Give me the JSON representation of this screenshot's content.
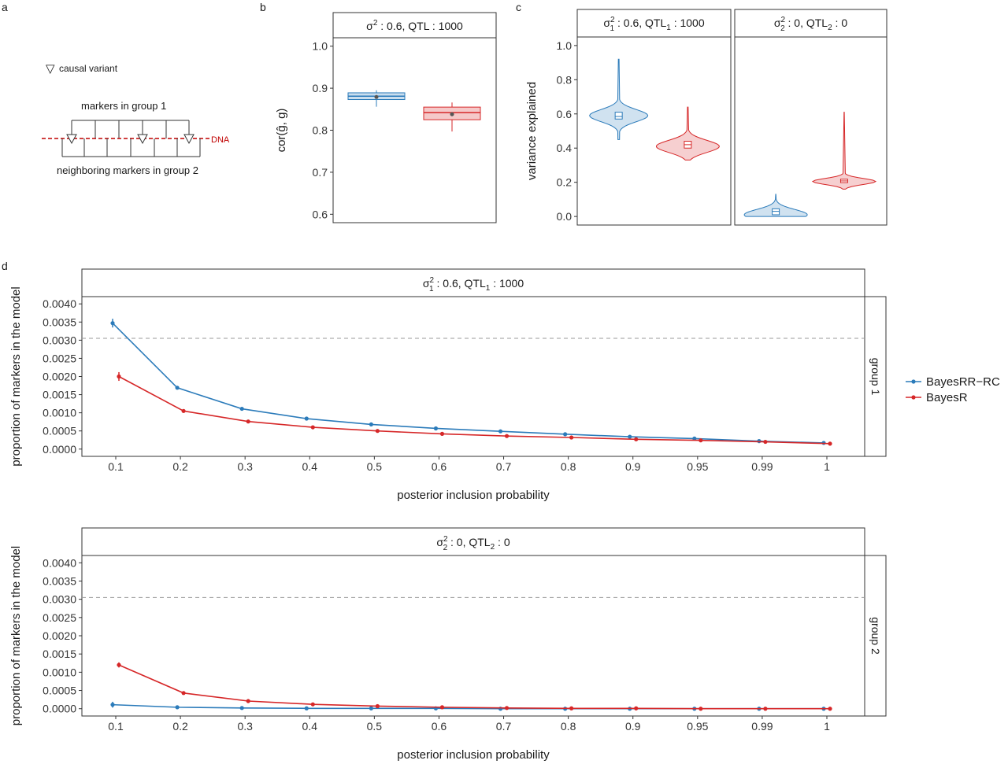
{
  "colors": {
    "bayesrr_rc": "#2b7bba",
    "bayesr": "#d62728",
    "dna": "#c00000",
    "dashed": "#999999"
  },
  "panel_labels": [
    "a",
    "b",
    "c",
    "d"
  ],
  "panel_a": {
    "legend_glyph": "▽",
    "legend_label": "causal variant",
    "group1_label": "markers in group 1",
    "group2_label": "neighboring markers in group 2",
    "dna_label": "DNA"
  },
  "chart_data": [
    {
      "id": "b",
      "type": "box",
      "strip": {
        "base": "σ",
        "sup": "2",
        "rest": " : 0.6, QTL : 1000"
      },
      "ylabel": "cor(ĝ, g)",
      "ylim": [
        0.58,
        1.02
      ],
      "yticks": [
        "0.6",
        "0.7",
        "0.8",
        "0.9",
        "1.0"
      ],
      "boxes": [
        {
          "method": "BayesRR-RC",
          "whisker_low": 0.856,
          "q1": 0.873,
          "median": 0.881,
          "q3": 0.889,
          "whisker_high": 0.895,
          "mean": 0.879
        },
        {
          "method": "BayesR",
          "whisker_low": 0.797,
          "q1": 0.825,
          "median": 0.842,
          "q3": 0.855,
          "whisker_high": 0.866,
          "mean": 0.838
        }
      ]
    },
    {
      "id": "c",
      "type": "violin",
      "ylabel": "variance explained",
      "ylim": [
        -0.05,
        1.05
      ],
      "yticks": [
        "0.0",
        "0.2",
        "0.4",
        "0.6",
        "0.8",
        "1.0"
      ],
      "facets": [
        {
          "strip": {
            "base": "σ",
            "sup": "2",
            "sub": "1",
            "rest": " : 0.6, QTL",
            "sub2": "1",
            "rest2": " : 1000"
          },
          "violins": [
            {
              "method": "BayesRR-RC",
              "min": 0.45,
              "max": 0.92,
              "center": 0.59,
              "q1": 0.57,
              "median": 0.585,
              "q3": 0.61
            },
            {
              "method": "BayesR",
              "min": 0.33,
              "max": 0.64,
              "center": 0.41,
              "q1": 0.4,
              "median": 0.42,
              "q3": 0.44
            }
          ]
        },
        {
          "strip": {
            "base": "σ",
            "sup": "2",
            "sub": "2",
            "rest": " : 0, QTL",
            "sub2": "2",
            "rest2": " : 0"
          },
          "violins": [
            {
              "method": "BayesRR-RC",
              "min": 0.0,
              "max": 0.13,
              "center": 0.01,
              "q1": 0.01,
              "median": 0.03,
              "q3": 0.045
            },
            {
              "method": "BayesR",
              "min": 0.16,
              "max": 0.61,
              "center": 0.205,
              "q1": 0.198,
              "median": 0.208,
              "q3": 0.218
            }
          ]
        }
      ]
    },
    {
      "id": "d",
      "type": "line",
      "xlabel": "posterior inclusion probability",
      "ylabel": "proportion of markers in the model",
      "categories": [
        "0.1",
        "0.2",
        "0.3",
        "0.4",
        "0.5",
        "0.6",
        "0.7",
        "0.8",
        "0.9",
        "0.95",
        "0.99",
        "1"
      ],
      "yticks": [
        "0.0000",
        "0.0005",
        "0.0010",
        "0.0015",
        "0.0020",
        "0.0025",
        "0.0030",
        "0.0035",
        "0.0040"
      ],
      "ylim": [
        -0.0002,
        0.0042
      ],
      "reference_line": 0.00305,
      "legend": [
        "BayesRR−RC",
        "BayesR"
      ],
      "facets": [
        {
          "strip": {
            "base": "σ",
            "sup": "2",
            "sub": "1",
            "rest": " : 0.6, QTL",
            "sub2": "1",
            "rest2": " : 1000"
          },
          "side": "group 1",
          "series": [
            {
              "name": "BayesRR−RC",
              "values": [
                0.00347,
                0.00169,
                0.00111,
                0.00084,
                0.00068,
                0.00057,
                0.00049,
                0.00041,
                0.00034,
                0.00029,
                0.00022,
                0.00017
              ],
              "errors": [
                0.00012,
                4e-05,
                3e-05,
                3e-05,
                3e-05,
                2e-05,
                2e-05,
                2e-05,
                2e-05,
                2e-05,
                1e-05,
                1e-05
              ]
            },
            {
              "name": "BayesR",
              "values": [
                0.002,
                0.00105,
                0.00076,
                0.0006,
                0.0005,
                0.00042,
                0.00036,
                0.00032,
                0.00027,
                0.00024,
                0.0002,
                0.00015
              ],
              "errors": [
                0.00012,
                5e-05,
                4e-05,
                4e-05,
                3e-05,
                2e-05,
                2e-05,
                2e-05,
                2e-05,
                1e-05,
                1e-05,
                1e-05
              ]
            }
          ]
        },
        {
          "strip": {
            "base": "σ",
            "sup": "2",
            "sub": "2",
            "rest": " : 0, QTL",
            "sub2": "2",
            "rest2": " : 0"
          },
          "side": "group 2",
          "series": [
            {
              "name": "BayesRR−RC",
              "values": [
                0.00011,
                4e-05,
                2e-05,
                1e-05,
                1e-05,
                1e-05,
                0.0,
                0.0,
                0.0,
                0.0,
                0.0,
                0.0
              ],
              "errors": [
                8e-05,
                2e-05,
                1e-05,
                1e-05,
                0.0,
                0.0,
                0.0,
                0.0,
                0.0,
                0.0,
                0.0,
                0.0
              ]
            },
            {
              "name": "BayesR",
              "values": [
                0.0012,
                0.00043,
                0.00021,
                0.00012,
                7e-05,
                4e-05,
                2e-05,
                1e-05,
                1e-05,
                0.0,
                0.0,
                0.0
              ],
              "errors": [
                7e-05,
                3e-05,
                2e-05,
                1e-05,
                1e-05,
                1e-05,
                0.0,
                0.0,
                0.0,
                0.0,
                0.0,
                0.0
              ]
            }
          ]
        }
      ]
    }
  ]
}
